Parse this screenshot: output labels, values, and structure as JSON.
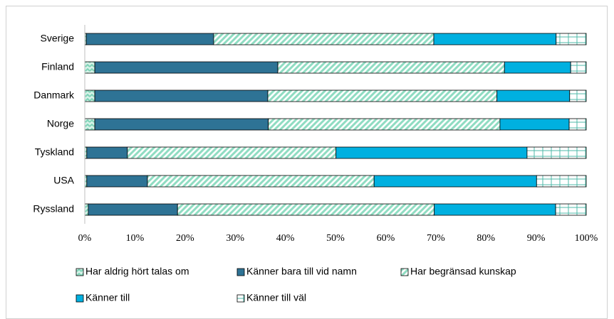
{
  "chart_data": {
    "type": "stacked-barh",
    "categories": [
      "Sverige",
      "Finland",
      "Danmark",
      "Norge",
      "Tyskland",
      "USA",
      "Ryssland"
    ],
    "series": [
      {
        "name": "Har aldrig hört talas om",
        "color": "#7fd3b8",
        "pattern": "zigzag",
        "values": [
          0.3,
          2.0,
          2.0,
          2.0,
          0.4,
          0.4,
          0.7
        ]
      },
      {
        "name": "Känner bara till vid namn",
        "color": "#2e7395",
        "pattern": "solid",
        "values": [
          25.4,
          36.5,
          34.5,
          34.6,
          8.1,
          12.1,
          17.8
        ]
      },
      {
        "name": "Har begränsad kunskap",
        "color": "#8fdcc2",
        "pattern": "diagonal",
        "values": [
          43.9,
          45.2,
          45.7,
          46.2,
          41.6,
          45.2,
          51.2
        ]
      },
      {
        "name": "Känner till",
        "color": "#00b0e0",
        "pattern": "solid",
        "values": [
          24.4,
          13.2,
          14.5,
          13.8,
          38.1,
          32.4,
          24.2
        ]
      },
      {
        "name": "Känner till väl",
        "color": "#4fb8a8",
        "pattern": "grid",
        "values": [
          6.0,
          3.1,
          3.3,
          3.4,
          11.8,
          9.9,
          6.1
        ]
      }
    ],
    "xlim": [
      0,
      100
    ],
    "xticks": [
      {
        "value": 0,
        "label": "0%"
      },
      {
        "value": 10,
        "label": "10%"
      },
      {
        "value": 20,
        "label": "20%"
      },
      {
        "value": 30,
        "label": "30%"
      },
      {
        "value": 40,
        "label": "40%"
      },
      {
        "value": 50,
        "label": "50%"
      },
      {
        "value": 60,
        "label": "60%"
      },
      {
        "value": 70,
        "label": "70%"
      },
      {
        "value": 80,
        "label": "80%"
      },
      {
        "value": 90,
        "label": "90%"
      },
      {
        "value": 100,
        "label": "100%"
      }
    ]
  }
}
